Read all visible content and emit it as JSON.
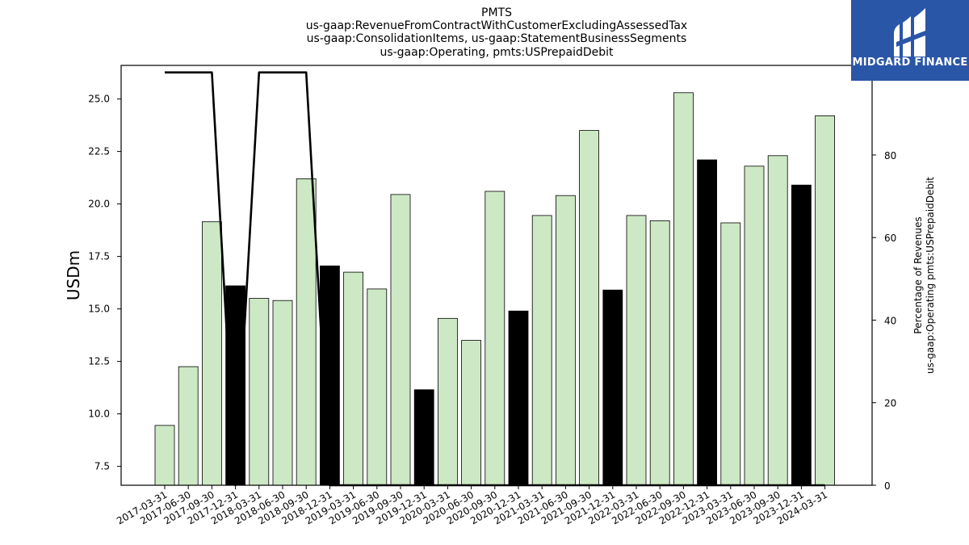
{
  "logo": {
    "text": "MIDGARD FINANCE",
    "bg_color": "#2a56a8"
  },
  "chart_data": {
    "type": "bar",
    "title_lines": [
      "PMTS",
      "us-gaap:RevenueFromContractWithCustomerExcludingAssessedTax",
      "us-gaap:ConsolidationItems, us-gaap:StatementBusinessSegments",
      "us-gaap:Operating, pmts:USPrepaidDebit"
    ],
    "ylabel": "USDm",
    "ylabel_right": [
      "Percentage of Revenues",
      "us-gaap:Operating pmts:USPrepaidDebit"
    ],
    "ylim": [
      6.6,
      26.6
    ],
    "yticks": [
      "7.5",
      "10.0",
      "12.5",
      "15.0",
      "17.5",
      "20.0",
      "22.5",
      "25.0"
    ],
    "ylim_right": [
      0,
      101.7
    ],
    "yticks_right": [
      "0",
      "20",
      "40",
      "60",
      "80",
      "100"
    ],
    "categories": [
      "2017-03-31",
      "2017-06-30",
      "2017-09-30",
      "2017-12-31",
      "2018-03-31",
      "2018-06-30",
      "2018-09-30",
      "2018-12-31",
      "2019-03-31",
      "2019-06-30",
      "2019-09-30",
      "2019-12-31",
      "2020-03-31",
      "2020-06-30",
      "2020-09-30",
      "2020-12-31",
      "2021-03-31",
      "2021-06-30",
      "2021-09-30",
      "2021-12-31",
      "2022-03-31",
      "2022-06-30",
      "2022-09-30",
      "2022-12-31",
      "2023-03-31",
      "2023-06-30",
      "2023-09-30",
      "2023-12-31",
      "2024-03-31"
    ],
    "values": [
      9.45,
      12.25,
      19.15,
      16.1,
      15.5,
      15.4,
      21.2,
      17.05,
      16.75,
      15.95,
      20.45,
      11.15,
      14.55,
      13.5,
      20.6,
      14.9,
      19.45,
      20.4,
      23.5,
      15.9,
      19.45,
      19.2,
      25.3,
      22.1,
      19.1,
      21.8,
      22.3,
      20.9,
      24.2
    ],
    "q4_flags": [
      false,
      false,
      false,
      true,
      false,
      false,
      false,
      true,
      false,
      false,
      false,
      true,
      false,
      false,
      false,
      true,
      false,
      false,
      false,
      true,
      false,
      false,
      false,
      true,
      false,
      false,
      false,
      true,
      false
    ],
    "bar_color": "#cde8c4",
    "q4_bar_color": "#000000",
    "line_series": {
      "name": "Percentage of Revenues",
      "values": [
        100,
        100,
        100,
        0,
        100,
        100,
        100,
        0,
        0,
        0,
        0,
        0,
        0,
        0,
        0,
        0,
        0,
        0,
        0,
        0,
        0,
        0,
        0,
        0,
        0,
        0,
        0,
        0,
        0
      ],
      "color": "#000000"
    },
    "grid": false
  }
}
